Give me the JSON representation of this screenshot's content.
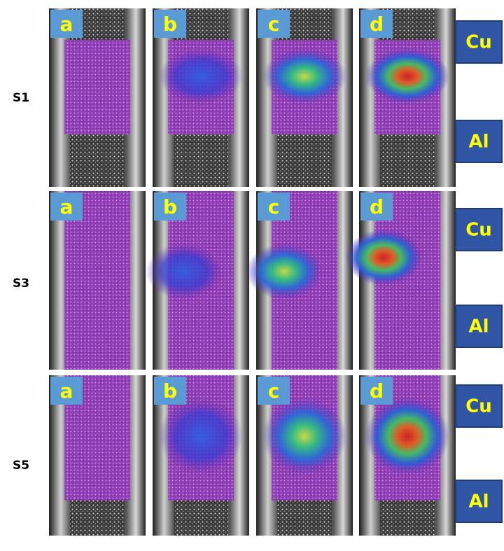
{
  "rows": [
    {
      "label": "S1",
      "panels": [
        "a",
        "b",
        "c",
        "d"
      ],
      "materials": [
        "Cu",
        "Al"
      ]
    },
    {
      "label": "S3",
      "panels": [
        "a",
        "b",
        "c",
        "d"
      ],
      "materials": [
        "Cu",
        "Al"
      ]
    },
    {
      "label": "S5",
      "panels": [
        "a",
        "b",
        "c",
        "d"
      ],
      "materials": [
        "Cu",
        "Al"
      ]
    }
  ]
}
